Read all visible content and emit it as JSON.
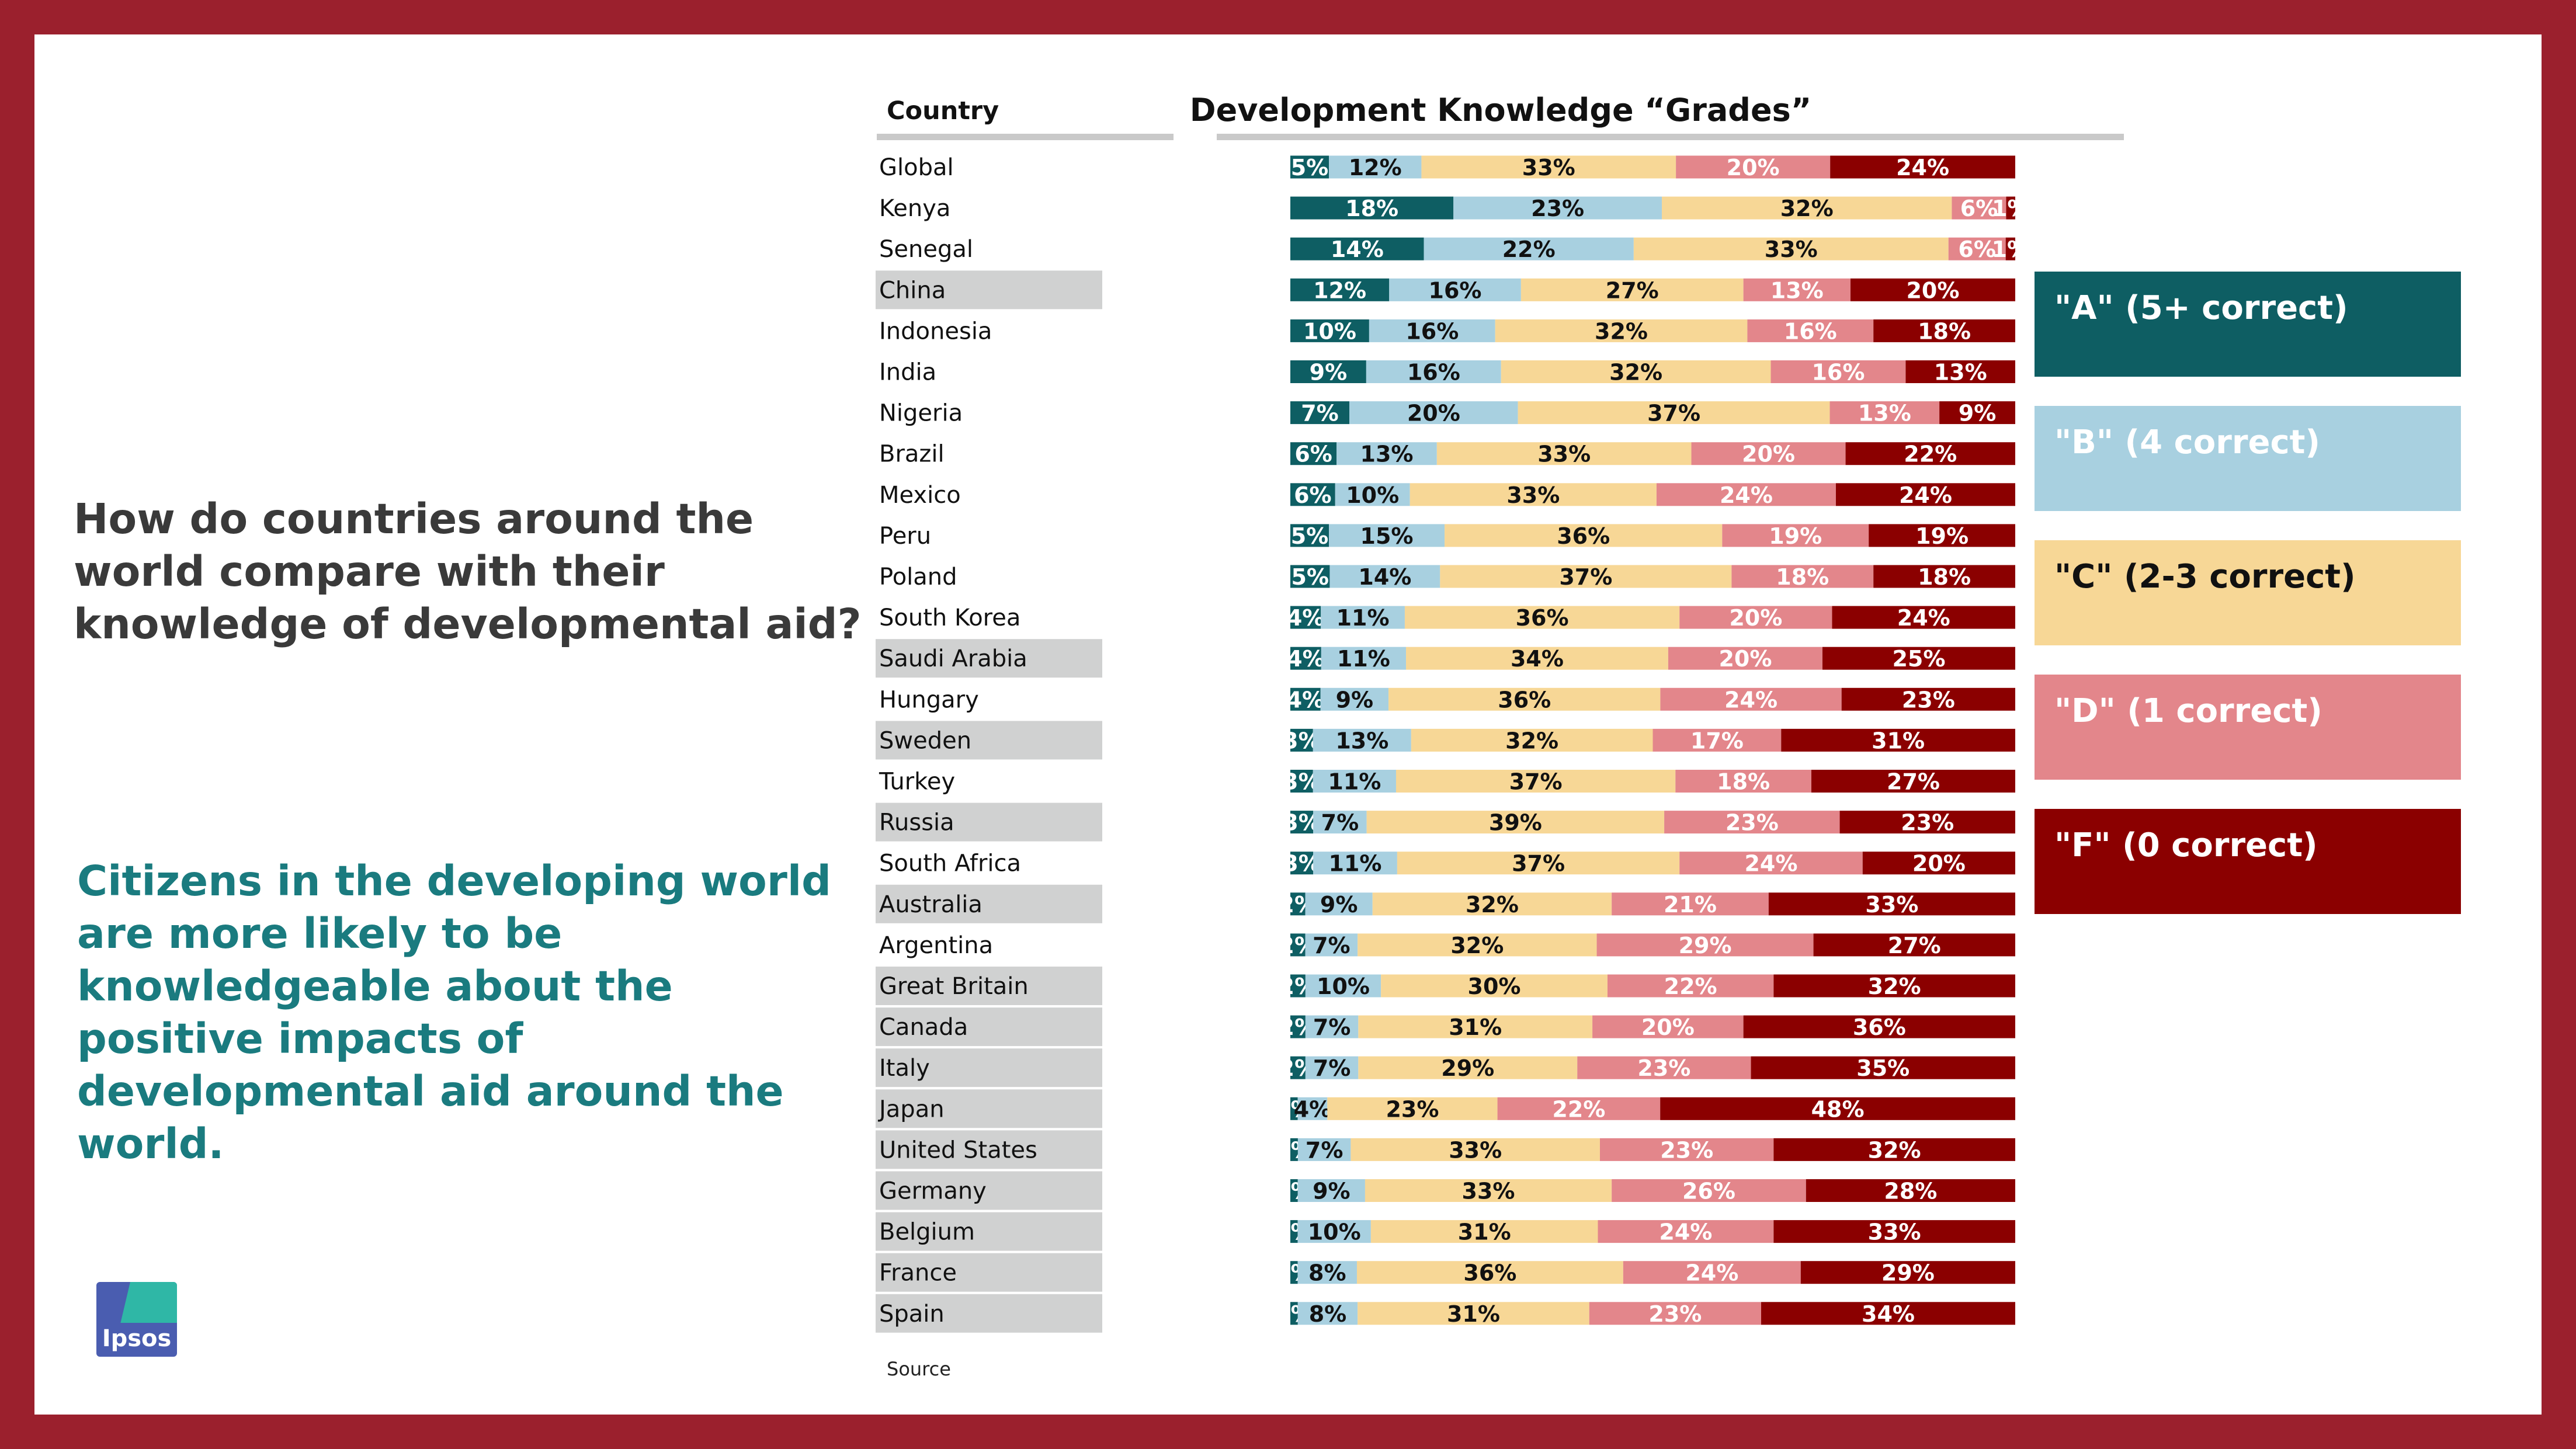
{
  "question": "How do countries around the world compare with their knowledge of developmental aid?",
  "insight": "Citizens in the developing world are more likely to be knowledgeable about the positive impacts of developmental aid around the world.",
  "logo_text": "Ipsos",
  "source": "Source",
  "colors": {
    "frame": "#9b202d",
    "A": "#0e5e63",
    "B": "#a8d0e0",
    "C": "#f7d796",
    "D": "#e3868b",
    "F": "#8b0000",
    "row_highlight": "#d0d1d1"
  },
  "legend": [
    {
      "key": "A",
      "label": "\"A\" (5+ correct)",
      "text_color": "#ffffff"
    },
    {
      "key": "B",
      "label": "\"B\" (4 correct)",
      "text_color": "#ffffff"
    },
    {
      "key": "C",
      "label": "\"C\" (2-3 correct)",
      "text_color": "#111111"
    },
    {
      "key": "D",
      "label": "\"D\" (1 correct)",
      "text_color": "#ffffff"
    },
    {
      "key": "F",
      "label": "\"F\" (0 correct)",
      "text_color": "#ffffff"
    }
  ],
  "chart_data": {
    "type": "bar",
    "orientation": "horizontal-stacked-100",
    "title": "Development Knowledge “Grades”",
    "category_header": "Country",
    "categories": [
      "Global",
      "Kenya",
      "Senegal",
      "China",
      "Indonesia",
      "India",
      "Nigeria",
      "Brazil",
      "Mexico",
      "Peru",
      "Poland",
      "South Korea",
      "Saudi Arabia",
      "Hungary",
      "Sweden",
      "Turkey",
      "Russia",
      "South Africa",
      "Australia",
      "Argentina",
      "Great Britain",
      "Canada",
      "Italy",
      "Japan",
      "United States",
      "Germany",
      "Belgium",
      "France",
      "Spain"
    ],
    "highlighted": [
      false,
      false,
      false,
      true,
      false,
      false,
      false,
      false,
      false,
      false,
      false,
      false,
      true,
      false,
      true,
      false,
      true,
      false,
      true,
      false,
      true,
      true,
      true,
      true,
      true,
      true,
      true,
      true,
      true
    ],
    "series": [
      {
        "name": "\"A\" (5+ correct)",
        "values": [
          5,
          18,
          14,
          12,
          10,
          9,
          7,
          6,
          6,
          5,
          5,
          4,
          4,
          4,
          3,
          3,
          3,
          3,
          2,
          2,
          2,
          2,
          2,
          1,
          1,
          1,
          1,
          1,
          1
        ]
      },
      {
        "name": "\"B\" (4 correct)",
        "values": [
          12,
          23,
          22,
          16,
          16,
          16,
          20,
          13,
          10,
          15,
          14,
          11,
          11,
          9,
          13,
          11,
          7,
          11,
          9,
          7,
          10,
          7,
          7,
          4,
          7,
          9,
          10,
          8,
          8
        ]
      },
      {
        "name": "\"C\" (2-3 correct)",
        "values": [
          33,
          32,
          33,
          27,
          32,
          32,
          37,
          33,
          33,
          36,
          37,
          36,
          34,
          36,
          32,
          37,
          39,
          37,
          32,
          32,
          30,
          31,
          29,
          23,
          33,
          33,
          31,
          36,
          31
        ]
      },
      {
        "name": "\"D\" (1 correct)",
        "values": [
          20,
          6,
          6,
          13,
          16,
          16,
          13,
          20,
          24,
          19,
          18,
          20,
          20,
          24,
          17,
          18,
          23,
          24,
          21,
          29,
          22,
          20,
          23,
          22,
          23,
          26,
          24,
          24,
          23
        ]
      },
      {
        "name": "\"F\" (0 correct)",
        "values": [
          24,
          1,
          1,
          20,
          18,
          13,
          9,
          22,
          24,
          19,
          18,
          24,
          25,
          23,
          31,
          27,
          23,
          20,
          33,
          27,
          32,
          36,
          35,
          48,
          32,
          28,
          33,
          29,
          34
        ]
      }
    ],
    "value_suffix": "%"
  }
}
